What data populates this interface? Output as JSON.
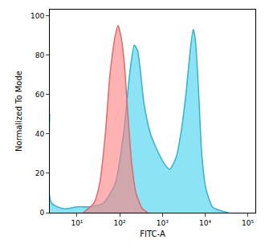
{
  "chart_data": {
    "type": "area",
    "x_label": "FITC-A",
    "y_label": "Normalized To Mode",
    "log": "x",
    "grid": false,
    "xlim": [
      2.3,
      150000
    ],
    "ylim": [
      0,
      103
    ],
    "xticks": [
      {
        "value": 10,
        "label": "10¹"
      },
      {
        "value": 100,
        "label": "10²"
      },
      {
        "value": 1000,
        "label": "10³"
      },
      {
        "value": 10000,
        "label": "10⁴"
      },
      {
        "value": 100000,
        "label": "10⁵"
      }
    ],
    "yticks": [
      0,
      20,
      40,
      60,
      80,
      100
    ],
    "series": [
      {
        "color": "#40d0f0",
        "x": [
          2.3,
          2.5,
          5,
          10,
          20,
          42,
          79,
          123,
          170,
          219,
          263,
          372,
          525,
          708,
          1096,
          1479,
          2089,
          2692,
          3548,
          4365,
          5248,
          5888,
          7079,
          8318,
          10471,
          14791,
          22909,
          35481
        ],
        "values": [
          50,
          5,
          2,
          3,
          3,
          5,
          15,
          40,
          70,
          85,
          82,
          55,
          40,
          33,
          25,
          22,
          28,
          40,
          60,
          80,
          93,
          88,
          60,
          30,
          12,
          3,
          1,
          0
        ]
      },
      {
        "color": "#ff7f7f",
        "x": [
          14,
          25,
          34,
          46,
          59,
          79,
          91,
          110,
          129,
          155,
          191,
          240,
          339,
          457
        ],
        "values": [
          0,
          5,
          15,
          40,
          70,
          90,
          95,
          88,
          75,
          50,
          25,
          10,
          2,
          0
        ]
      }
    ]
  }
}
